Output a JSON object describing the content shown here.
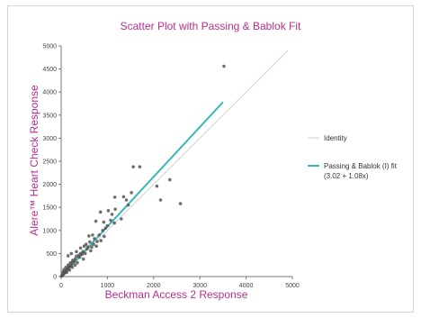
{
  "chart_data": {
    "type": "scatter",
    "title": "Scatter Plot with Passing & Bablok Fit",
    "xlabel": "Beckman Access 2 Response",
    "ylabel": "Alere™ Heart Check Response",
    "xlim": [
      0,
      5000
    ],
    "ylim": [
      0,
      5000
    ],
    "xticks": [
      "0",
      "1000",
      "2000",
      "3000",
      "4000",
      "5000"
    ],
    "yticks": [
      "0",
      "500",
      "1000",
      "1500",
      "2000",
      "2500",
      "3000",
      "3500",
      "4000",
      "4500",
      "5000"
    ],
    "grid": false,
    "legend_position": "right",
    "legend": [
      {
        "label": "Identity",
        "color": "#d0d0d0"
      },
      {
        "label": "Passing & Bablok (I) fit",
        "sublabel": "(3.02 + 1.08x)",
        "color": "#39b8b8"
      }
    ],
    "lines": [
      {
        "name": "Identity",
        "color": "#d0d0d0",
        "points": [
          [
            0,
            0
          ],
          [
            4900,
            4900
          ]
        ]
      },
      {
        "name": "Passing & Bablok (I) fit",
        "color": "#39b8b8",
        "points": [
          [
            0,
            3.02
          ],
          [
            3500,
            3783
          ]
        ]
      }
    ],
    "points_color": "#555555",
    "points": [
      [
        3520,
        4560
      ],
      [
        1700,
        2380
      ],
      [
        1560,
        2380
      ],
      [
        2350,
        2100
      ],
      [
        2070,
        1960
      ],
      [
        2580,
        1580
      ],
      [
        2150,
        1660
      ],
      [
        1160,
        1720
      ],
      [
        1350,
        1730
      ],
      [
        1520,
        1820
      ],
      [
        1410,
        1660
      ],
      [
        1170,
        1460
      ],
      [
        1020,
        1430
      ],
      [
        850,
        1400
      ],
      [
        1100,
        1350
      ],
      [
        1300,
        1250
      ],
      [
        920,
        1180
      ],
      [
        1000,
        1100
      ],
      [
        1150,
        1160
      ],
      [
        1450,
        1550
      ],
      [
        750,
        1200
      ],
      [
        900,
        1000
      ],
      [
        1070,
        1220
      ],
      [
        680,
        900
      ],
      [
        780,
        760
      ],
      [
        600,
        880
      ],
      [
        720,
        820
      ],
      [
        620,
        750
      ],
      [
        500,
        660
      ],
      [
        560,
        600
      ],
      [
        470,
        540
      ],
      [
        420,
        500
      ],
      [
        380,
        460
      ],
      [
        330,
        440
      ],
      [
        300,
        380
      ],
      [
        280,
        330
      ],
      [
        250,
        310
      ],
      [
        220,
        260
      ],
      [
        200,
        230
      ],
      [
        170,
        210
      ],
      [
        150,
        180
      ],
      [
        130,
        160
      ],
      [
        110,
        130
      ],
      [
        100,
        120
      ],
      [
        90,
        100
      ],
      [
        80,
        90
      ],
      [
        70,
        80
      ],
      [
        60,
        70
      ],
      [
        55,
        60
      ],
      [
        50,
        55
      ],
      [
        40,
        45
      ],
      [
        35,
        40
      ],
      [
        30,
        35
      ],
      [
        25,
        28
      ],
      [
        20,
        22
      ],
      [
        15,
        18
      ],
      [
        10,
        12
      ],
      [
        350,
        300
      ],
      [
        400,
        420
      ],
      [
        450,
        480
      ],
      [
        520,
        500
      ],
      [
        580,
        640
      ],
      [
        640,
        560
      ],
      [
        700,
        700
      ],
      [
        820,
        900
      ],
      [
        860,
        780
      ],
      [
        960,
        1050
      ],
      [
        250,
        350
      ],
      [
        200,
        300
      ],
      [
        150,
        250
      ],
      [
        100,
        200
      ],
      [
        300,
        250
      ],
      [
        240,
        200
      ],
      [
        180,
        140
      ],
      [
        120,
        90
      ],
      [
        480,
        380
      ],
      [
        540,
        700
      ],
      [
        660,
        640
      ],
      [
        760,
        660
      ],
      [
        930,
        870
      ],
      [
        150,
        450
      ],
      [
        220,
        500
      ],
      [
        60,
        150
      ],
      [
        40,
        100
      ],
      [
        330,
        540
      ],
      [
        420,
        620
      ]
    ]
  }
}
